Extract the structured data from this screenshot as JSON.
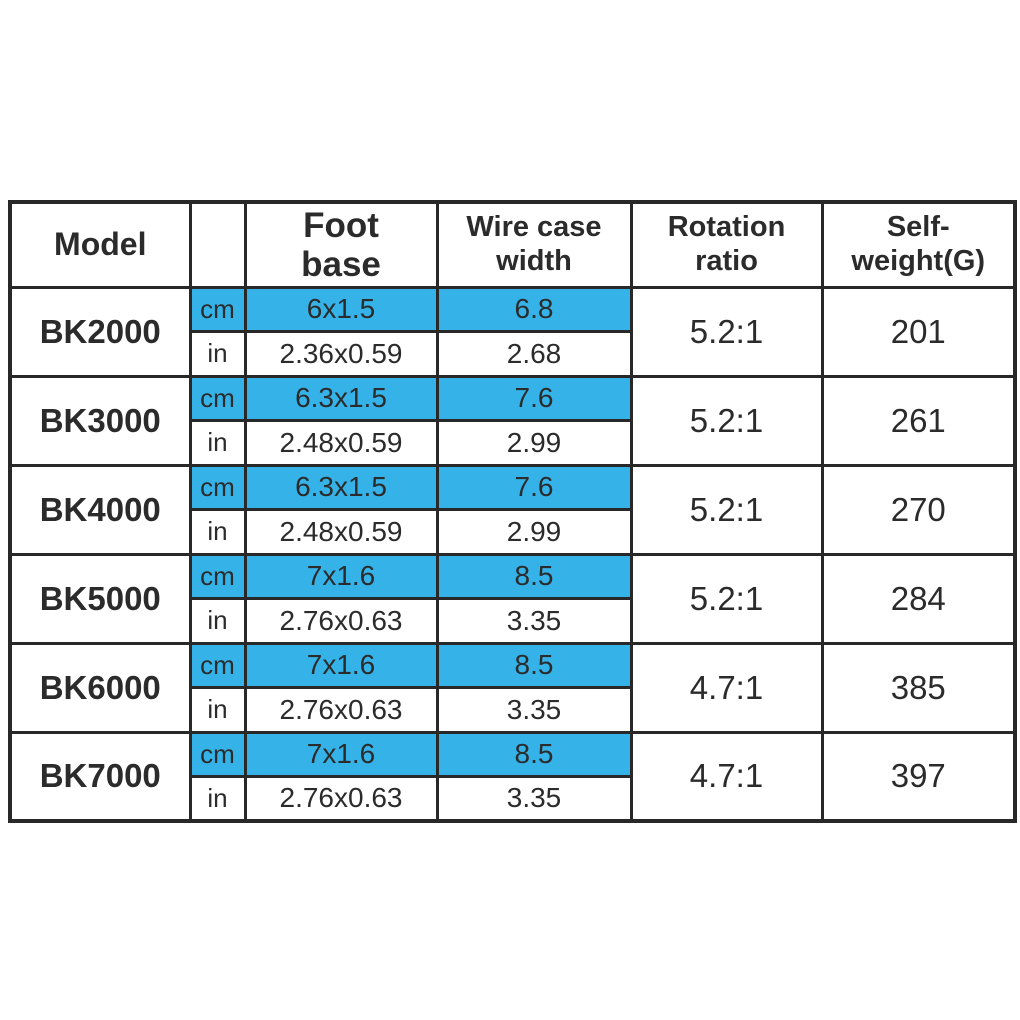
{
  "table": {
    "headers": {
      "model": "Model",
      "unit": "",
      "foot_base": "Foot\nbase",
      "wire_case_width": "Wire case\nwidth",
      "rotation_ratio": "Rotation\nratio",
      "self_weight": "Self-\nweight(G)"
    },
    "unit_labels": {
      "metric": "cm",
      "imperial": "in"
    },
    "rows": [
      {
        "model": "BK2000",
        "cm": {
          "foot_base": "6x1.5",
          "wire_case_width": "6.8"
        },
        "in": {
          "foot_base": "2.36x0.59",
          "wire_case_width": "2.68"
        },
        "rotation_ratio": "5.2:1",
        "self_weight": "201"
      },
      {
        "model": "BK3000",
        "cm": {
          "foot_base": "6.3x1.5",
          "wire_case_width": "7.6"
        },
        "in": {
          "foot_base": "2.48x0.59",
          "wire_case_width": "2.99"
        },
        "rotation_ratio": "5.2:1",
        "self_weight": "261"
      },
      {
        "model": "BK4000",
        "cm": {
          "foot_base": "6.3x1.5",
          "wire_case_width": "7.6"
        },
        "in": {
          "foot_base": "2.48x0.59",
          "wire_case_width": "2.99"
        },
        "rotation_ratio": "5.2:1",
        "self_weight": "270"
      },
      {
        "model": "BK5000",
        "cm": {
          "foot_base": "7x1.6",
          "wire_case_width": "8.5"
        },
        "in": {
          "foot_base": "2.76x0.63",
          "wire_case_width": "3.35"
        },
        "rotation_ratio": "5.2:1",
        "self_weight": "284"
      },
      {
        "model": "BK6000",
        "cm": {
          "foot_base": "7x1.6",
          "wire_case_width": "8.5"
        },
        "in": {
          "foot_base": "2.76x0.63",
          "wire_case_width": "3.35"
        },
        "rotation_ratio": "4.7:1",
        "self_weight": "385"
      },
      {
        "model": "BK7000",
        "cm": {
          "foot_base": "7x1.6",
          "wire_case_width": "8.5"
        },
        "in": {
          "foot_base": "2.76x0.63",
          "wire_case_width": "3.35"
        },
        "rotation_ratio": "4.7:1",
        "self_weight": "397"
      }
    ],
    "colors": {
      "highlight_blue": "#35b3e8",
      "border": "#282828",
      "text": "#2b2b2b"
    }
  }
}
